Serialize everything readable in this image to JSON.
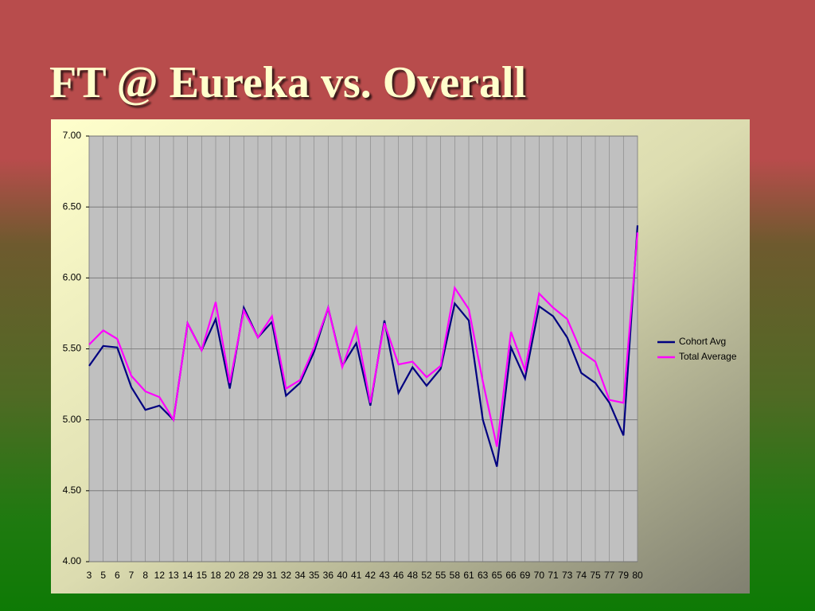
{
  "chart_data": {
    "type": "line",
    "title": "FT @ Eureka vs. Overall",
    "categories": [
      "3",
      "5",
      "6",
      "7",
      "8",
      "12",
      "13",
      "14",
      "15",
      "18",
      "20",
      "28",
      "29",
      "31",
      "32",
      "34",
      "35",
      "36",
      "40",
      "41",
      "42",
      "43",
      "46",
      "48",
      "52",
      "55",
      "58",
      "61",
      "63",
      "65",
      "66",
      "69",
      "70",
      "71",
      "73",
      "74",
      "75",
      "77",
      "79",
      "80"
    ],
    "series": [
      {
        "name": "Cohort Avg",
        "color": "#000080",
        "values": [
          5.38,
          5.52,
          5.51,
          5.23,
          5.07,
          5.1,
          5.0,
          5.68,
          5.49,
          5.71,
          5.22,
          5.79,
          5.58,
          5.69,
          5.17,
          5.26,
          5.48,
          5.79,
          5.38,
          5.54,
          5.1,
          5.7,
          5.19,
          5.37,
          5.24,
          5.36,
          5.82,
          5.7,
          5.0,
          4.67,
          5.51,
          5.29,
          5.8,
          5.73,
          5.58,
          5.33,
          5.26,
          5.12,
          4.89,
          6.37
        ]
      },
      {
        "name": "Total Average",
        "color": "#ff00ff",
        "values": [
          5.53,
          5.63,
          5.57,
          5.31,
          5.2,
          5.16,
          5.0,
          5.68,
          5.49,
          5.83,
          5.26,
          5.77,
          5.58,
          5.73,
          5.22,
          5.28,
          5.51,
          5.79,
          5.37,
          5.65,
          5.12,
          5.68,
          5.39,
          5.41,
          5.3,
          5.38,
          5.93,
          5.78,
          5.27,
          4.81,
          5.62,
          5.35,
          5.89,
          5.79,
          5.71,
          5.48,
          5.41,
          5.14,
          5.12,
          6.32
        ]
      }
    ],
    "ylim": [
      4,
      7
    ],
    "yticks": [
      {
        "value": 4,
        "label": "4.00"
      },
      {
        "value": 4.5,
        "label": "4.50"
      },
      {
        "value": 5,
        "label": "5.00"
      },
      {
        "value": 5.5,
        "label": "5.50"
      },
      {
        "value": 6,
        "label": "6.00"
      },
      {
        "value": 6.5,
        "label": "6.50"
      },
      {
        "value": 7,
        "label": "7.00"
      }
    ],
    "grid": true,
    "legend": "right"
  }
}
